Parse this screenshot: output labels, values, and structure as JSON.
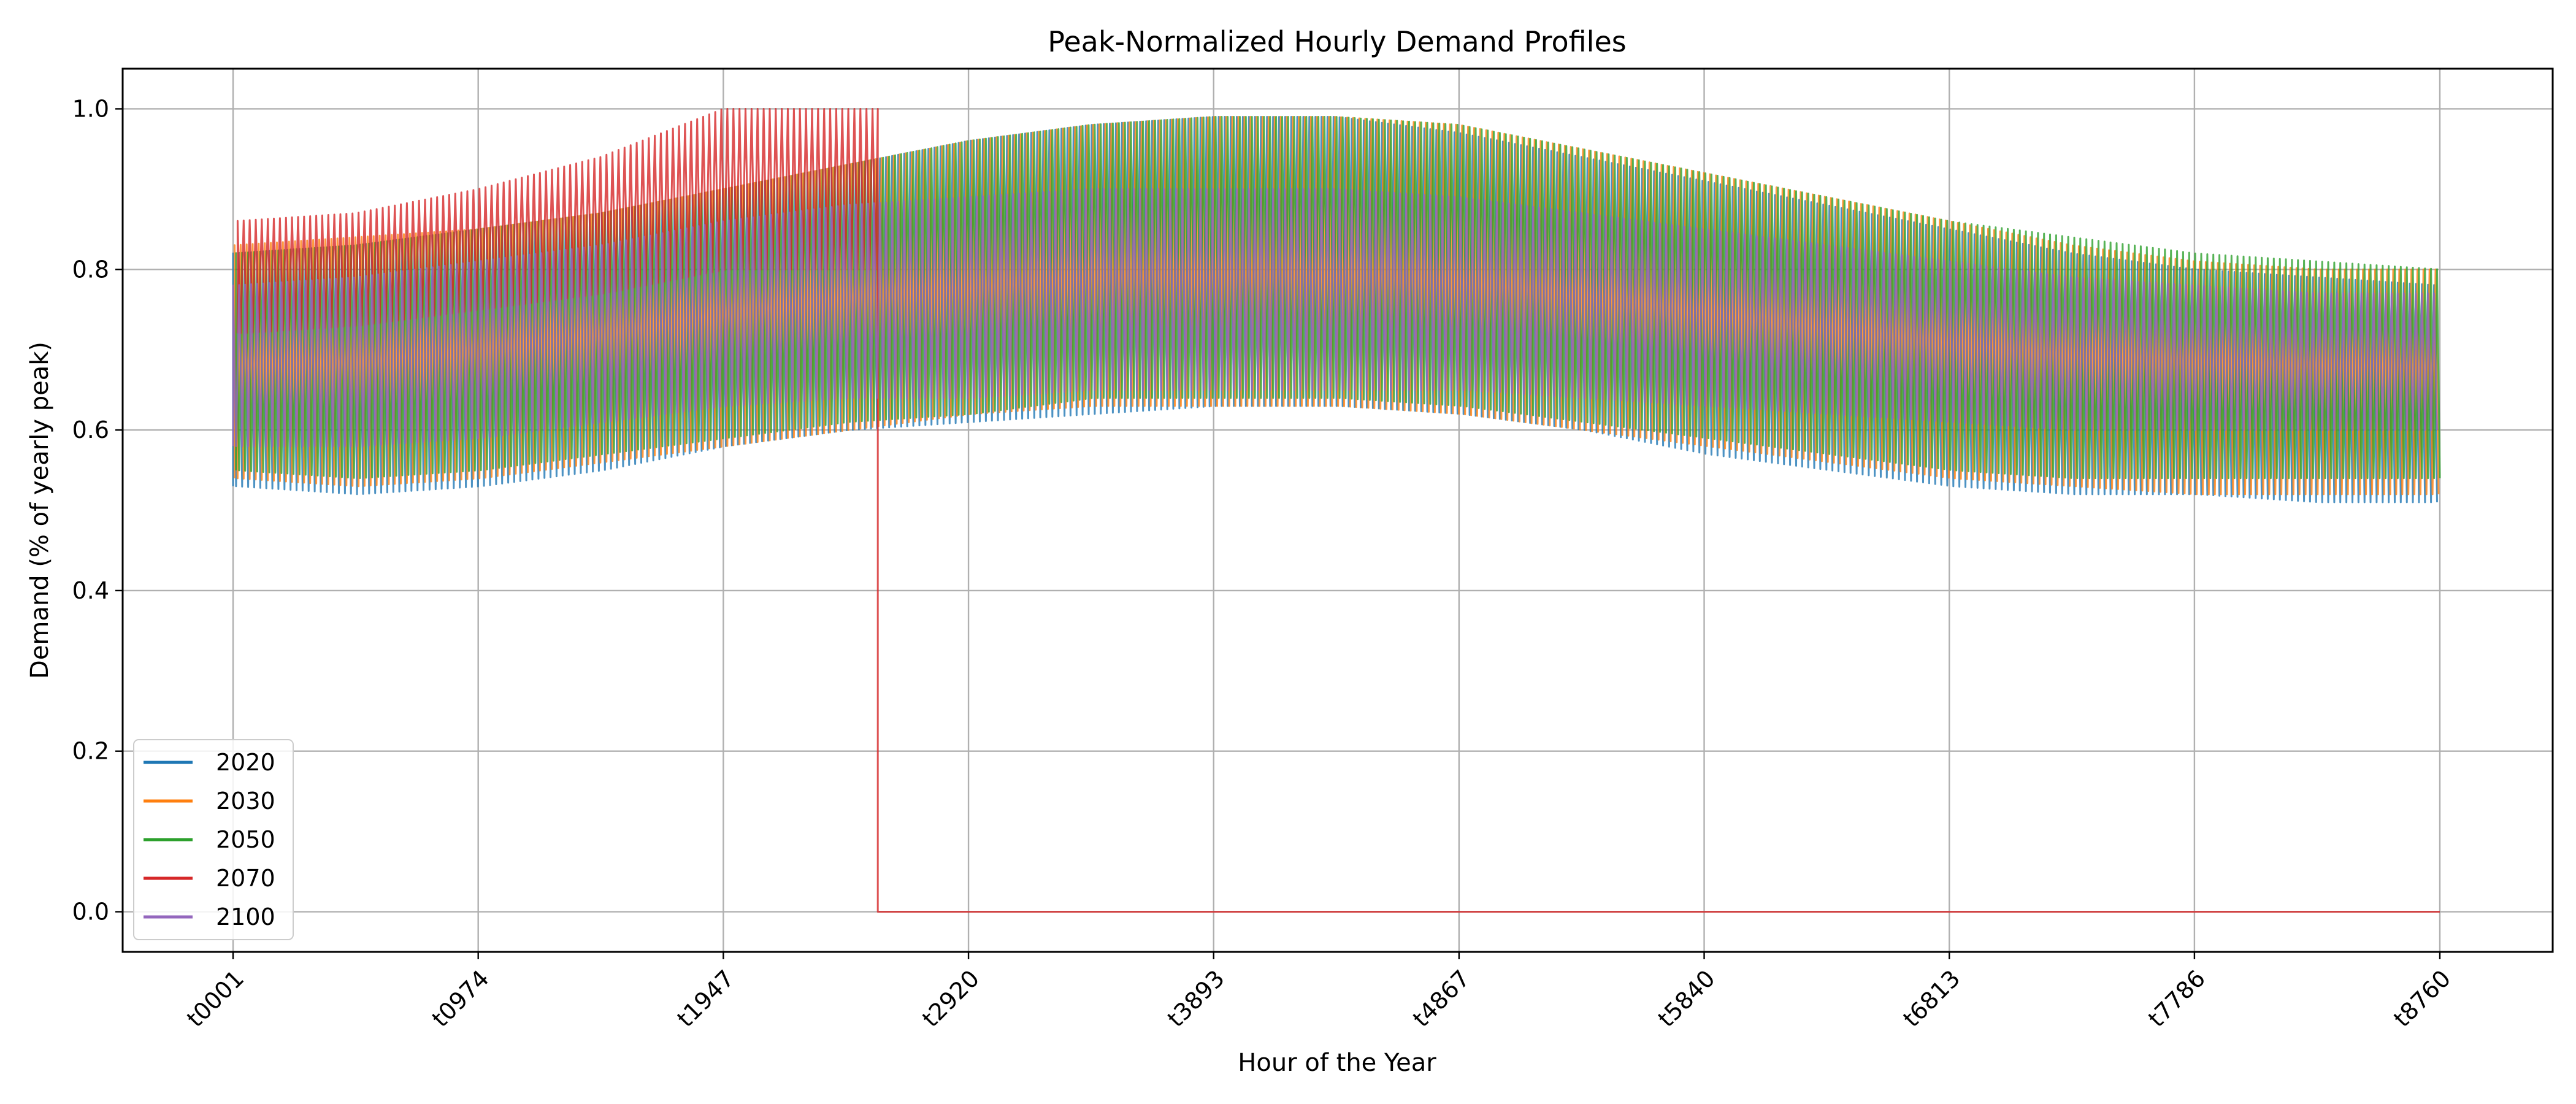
{
  "chart_data": {
    "type": "line",
    "title": "Peak-Normalized Hourly Demand Profiles",
    "xlabel": "Hour of the Year",
    "ylabel": "Demand (% of yearly peak)",
    "x_range": [
      1,
      8760
    ],
    "ylim": [
      -0.05,
      1.05
    ],
    "x_ticks": [
      {
        "hour": 1,
        "label": "t0001"
      },
      {
        "hour": 974,
        "label": "t0974"
      },
      {
        "hour": 1947,
        "label": "t1947"
      },
      {
        "hour": 2920,
        "label": "t2920"
      },
      {
        "hour": 3893,
        "label": "t3893"
      },
      {
        "hour": 4867,
        "label": "t4867"
      },
      {
        "hour": 5840,
        "label": "t5840"
      },
      {
        "hour": 6813,
        "label": "t6813"
      },
      {
        "hour": 7786,
        "label": "t7786"
      },
      {
        "hour": 8760,
        "label": "t8760"
      }
    ],
    "y_ticks": [
      {
        "value": 0.0,
        "label": "0.0"
      },
      {
        "value": 0.2,
        "label": "0.2"
      },
      {
        "value": 0.4,
        "label": "0.4"
      },
      {
        "value": 0.6,
        "label": "0.6"
      },
      {
        "value": 0.8,
        "label": "0.8"
      },
      {
        "value": 1.0,
        "label": "1.0"
      }
    ],
    "grid": true,
    "legend_position": "lower-left",
    "envelope_hours": [
      1,
      487,
      974,
      1460,
      1947,
      2433,
      2920,
      3406,
      3893,
      4380,
      4867,
      5353,
      5840,
      6326,
      6813,
      7299,
      7786,
      8273,
      8760
    ],
    "series": [
      {
        "name": "2020",
        "color": "#1f77b4",
        "daily_max": [
          0.82,
          0.83,
          0.85,
          0.87,
          0.9,
          0.93,
          0.96,
          0.98,
          0.99,
          0.99,
          0.97,
          0.94,
          0.91,
          0.88,
          0.85,
          0.82,
          0.8,
          0.79,
          0.78
        ],
        "daily_min": [
          0.53,
          0.52,
          0.53,
          0.55,
          0.58,
          0.6,
          0.61,
          0.62,
          0.63,
          0.63,
          0.62,
          0.6,
          0.57,
          0.55,
          0.53,
          0.52,
          0.52,
          0.51,
          0.51
        ]
      },
      {
        "name": "2030",
        "color": "#ff7f0e",
        "daily_max": [
          0.83,
          0.84,
          0.85,
          0.87,
          0.9,
          0.93,
          0.96,
          0.98,
          0.99,
          0.99,
          0.98,
          0.95,
          0.92,
          0.89,
          0.86,
          0.83,
          0.81,
          0.8,
          0.8
        ],
        "daily_min": [
          0.54,
          0.53,
          0.54,
          0.56,
          0.58,
          0.6,
          0.62,
          0.63,
          0.63,
          0.63,
          0.62,
          0.6,
          0.58,
          0.56,
          0.54,
          0.53,
          0.52,
          0.52,
          0.52
        ]
      },
      {
        "name": "2050",
        "color": "#2ca02c",
        "daily_max": [
          0.82,
          0.83,
          0.85,
          0.87,
          0.9,
          0.93,
          0.96,
          0.98,
          0.99,
          0.99,
          0.98,
          0.95,
          0.92,
          0.89,
          0.86,
          0.84,
          0.82,
          0.81,
          0.8
        ],
        "daily_min": [
          0.55,
          0.54,
          0.55,
          0.57,
          0.59,
          0.61,
          0.62,
          0.64,
          0.64,
          0.64,
          0.63,
          0.61,
          0.59,
          0.57,
          0.55,
          0.54,
          0.54,
          0.54,
          0.54
        ]
      },
      {
        "name": "2070",
        "color": "#d62728",
        "daily_max": [
          0.86,
          0.87,
          0.9,
          0.94,
          1.0
        ],
        "daily_min": [
          0.72,
          0.73,
          0.75,
          0.77,
          0.8
        ],
        "drop_hour": 2560,
        "value_after_drop": 0.0
      },
      {
        "name": "2100",
        "color": "#9467bd",
        "daily_max": [
          0.78,
          0.79,
          0.81,
          0.83,
          0.86,
          0.88,
          0.89,
          0.9,
          0.9,
          0.9,
          0.89,
          0.87,
          0.85,
          0.83,
          0.81,
          0.79,
          0.78,
          0.77,
          0.77
        ],
        "daily_min": [
          0.58,
          0.58,
          0.59,
          0.61,
          0.63,
          0.64,
          0.64,
          0.65,
          0.65,
          0.65,
          0.65,
          0.64,
          0.63,
          0.62,
          0.61,
          0.6,
          0.6,
          0.6,
          0.6
        ]
      }
    ]
  }
}
